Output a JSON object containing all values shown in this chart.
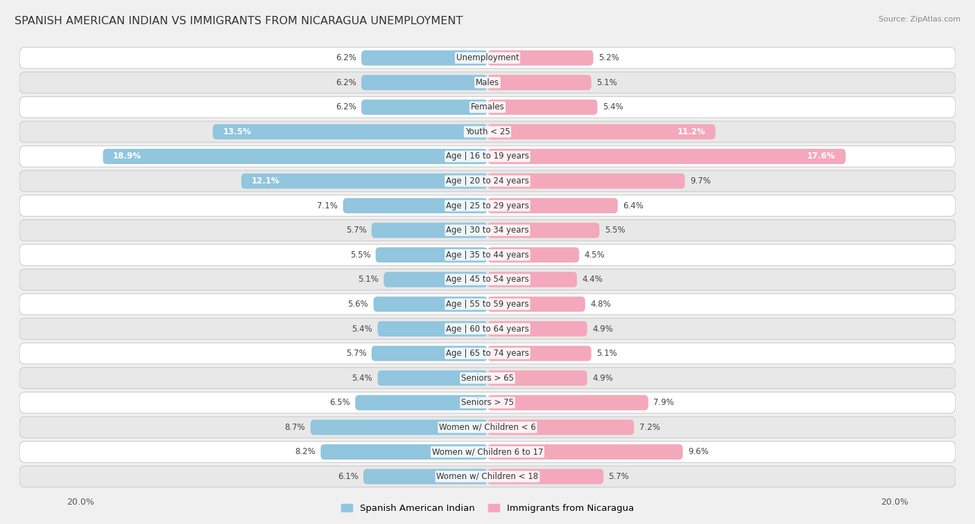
{
  "title": "SPANISH AMERICAN INDIAN VS IMMIGRANTS FROM NICARAGUA UNEMPLOYMENT",
  "source": "Source: ZipAtlas.com",
  "categories": [
    "Unemployment",
    "Males",
    "Females",
    "Youth < 25",
    "Age | 16 to 19 years",
    "Age | 20 to 24 years",
    "Age | 25 to 29 years",
    "Age | 30 to 34 years",
    "Age | 35 to 44 years",
    "Age | 45 to 54 years",
    "Age | 55 to 59 years",
    "Age | 60 to 64 years",
    "Age | 65 to 74 years",
    "Seniors > 65",
    "Seniors > 75",
    "Women w/ Children < 6",
    "Women w/ Children 6 to 17",
    "Women w/ Children < 18"
  ],
  "left_values": [
    6.2,
    6.2,
    6.2,
    13.5,
    18.9,
    12.1,
    7.1,
    5.7,
    5.5,
    5.1,
    5.6,
    5.4,
    5.7,
    5.4,
    6.5,
    8.7,
    8.2,
    6.1
  ],
  "right_values": [
    5.2,
    5.1,
    5.4,
    11.2,
    17.6,
    9.7,
    6.4,
    5.5,
    4.5,
    4.4,
    4.8,
    4.9,
    5.1,
    4.9,
    7.9,
    7.2,
    9.6,
    5.7
  ],
  "left_color": "#92c5de",
  "right_color": "#f4a8bb",
  "left_label": "Spanish American Indian",
  "right_label": "Immigrants from Nicaragua",
  "max_val": 20.0,
  "bg_color": "#f0f0f0",
  "row_color_odd": "#ffffff",
  "row_color_even": "#e8e8e8",
  "title_fontsize": 11.5,
  "label_fontsize": 8.5,
  "value_fontsize": 8.5,
  "legend_fontsize": 9.5
}
